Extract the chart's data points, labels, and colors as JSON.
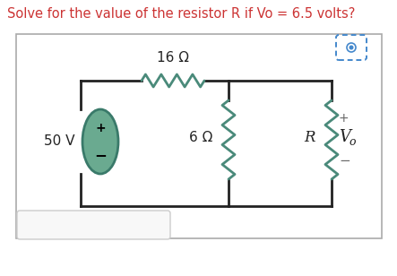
{
  "title": "Solve for the value of the resistor R if Vo = 6.5 volts?",
  "title_color": "#cc3333",
  "title_fontsize": 10.5,
  "bg_color": "#ffffff",
  "circuit_color": "#222222",
  "resistor_color": "#4a8a7a",
  "source_fill": "#6aaa90",
  "source_border": "#3a7a6a",
  "label_16": "16 Ω",
  "label_6": "6 Ω",
  "label_R": "R",
  "label_50V": "50 V",
  "label_Vo": "V",
  "label_o": "o",
  "label_plus": "+",
  "label_minus": "−",
  "camera_icon_color": "#4488cc",
  "box_border": "#aaaaaa",
  "ans_border": "#cccccc",
  "ans_fill": "#f8f8f8"
}
